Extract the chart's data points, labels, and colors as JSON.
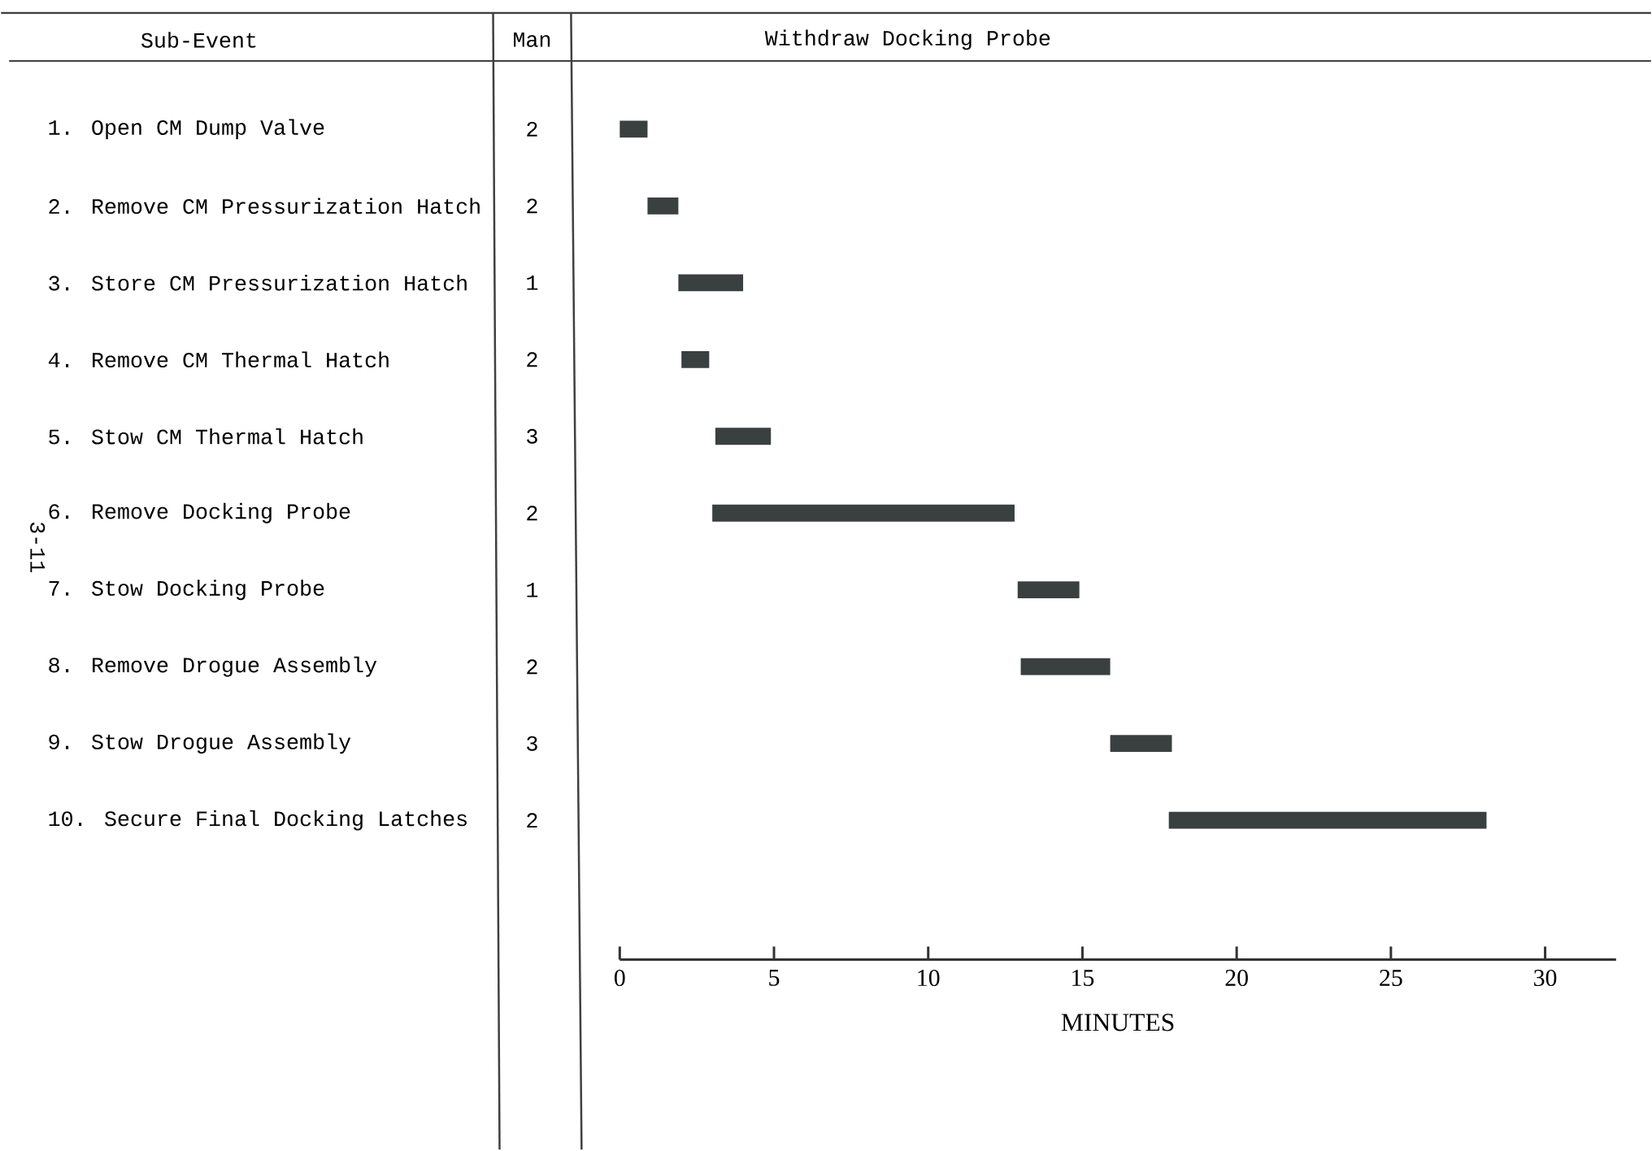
{
  "chart_data": {
    "type": "bar",
    "orientation": "horizontal",
    "title": "Withdraw Docking Probe",
    "xlabel": "MINUTES",
    "categories": [
      "1. Open CM Dump Valve",
      "2. Remove CM Pressurization Hatch",
      "3. Store CM Pressurization Hatch",
      "4. Remove CM Thermal Hatch",
      "5. Stow CM Thermal Hatch",
      "6. Remove Docking Probe",
      "7. Stow Docking Probe",
      "8. Remove Drogue Assembly",
      "9. Stow Drogue Assembly",
      "10. Secure Final Docking Latches"
    ],
    "base": [
      0,
      0.9,
      1.9,
      2.0,
      3.1,
      3.0,
      12.9,
      13.0,
      15.9,
      17.8
    ],
    "values": [
      0.9,
      1.0,
      2.1,
      0.9,
      1.8,
      9.8,
      2.0,
      2.9,
      2.0,
      10.3
    ],
    "color": "#3a3f3f",
    "xlim": [
      0,
      32.3
    ],
    "xticks": [
      0,
      5,
      10,
      15,
      20,
      25,
      30
    ],
    "annotations": [
      "Sub-Event",
      "Man",
      "2",
      "2",
      "1",
      "2",
      "3",
      "2",
      "1",
      "2",
      "3",
      "2",
      "3-11"
    ]
  }
}
